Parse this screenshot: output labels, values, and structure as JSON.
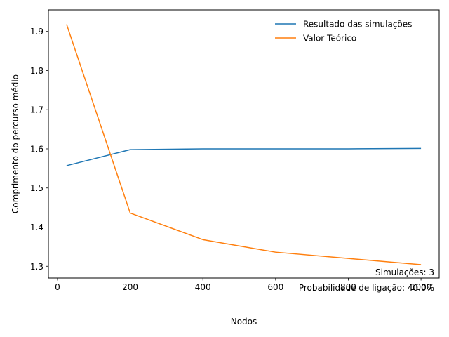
{
  "chart_data": {
    "type": "line",
    "xlabel": "Nodos",
    "ylabel": "Comprimento do percurso médio",
    "xlim": [
      -25,
      1050
    ],
    "ylim": [
      1.27,
      1.955
    ],
    "xticks": [
      0,
      200,
      400,
      600,
      800,
      1000
    ],
    "yticks": [
      1.3,
      1.4,
      1.5,
      1.6,
      1.7,
      1.8,
      1.9
    ],
    "grid": false,
    "legend_position": "top-right",
    "series": [
      {
        "name": "Resultado das simulações",
        "color": "#1f77b4",
        "x": [
          25,
          200,
          400,
          600,
          800,
          1000
        ],
        "y": [
          1.557,
          1.598,
          1.6,
          1.6,
          1.6,
          1.601
        ]
      },
      {
        "name": "Valor Teórico",
        "color": "#ff7f0e",
        "x": [
          25,
          200,
          400,
          600,
          800,
          1000
        ],
        "y": [
          1.918,
          1.436,
          1.368,
          1.336,
          1.32,
          1.304
        ]
      }
    ],
    "annotations": [
      "Simulações: 3",
      "Probabilidade de ligação: 40.0%"
    ]
  }
}
